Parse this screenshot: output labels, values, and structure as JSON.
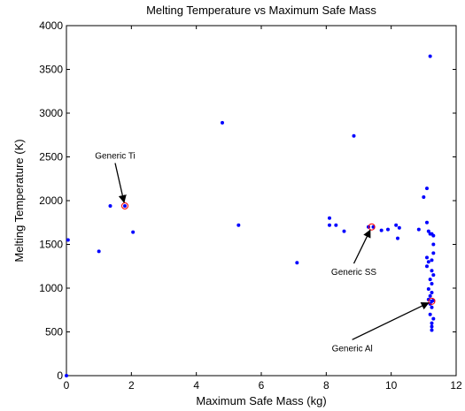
{
  "chart_data": {
    "type": "scatter",
    "title": "Melting Temperature vs Maximum Safe Mass",
    "xlabel": "Maximum Safe Mass (kg)",
    "ylabel": "Melting Temperature (K)",
    "xlim": [
      0,
      12
    ],
    "ylim": [
      0,
      4000
    ],
    "xticks": [
      0,
      2,
      4,
      6,
      8,
      10,
      12
    ],
    "yticks": [
      0,
      500,
      1000,
      1500,
      2000,
      2500,
      3000,
      3500,
      4000
    ],
    "grid": false,
    "colors": {
      "points": "#0000ff",
      "highlight": "#ff0000",
      "axes": "#000000"
    },
    "series": [
      {
        "points": [
          {
            "x": 0.0,
            "y": 0
          },
          {
            "x": 0.05,
            "y": 1550
          },
          {
            "x": 1.0,
            "y": 1420
          },
          {
            "x": 1.35,
            "y": 1940
          },
          {
            "x": 1.8,
            "y": 1940
          },
          {
            "x": 2.05,
            "y": 1640
          },
          {
            "x": 4.8,
            "y": 2890
          },
          {
            "x": 5.3,
            "y": 1720
          },
          {
            "x": 7.1,
            "y": 1290
          },
          {
            "x": 8.1,
            "y": 1800
          },
          {
            "x": 8.1,
            "y": 1720
          },
          {
            "x": 8.3,
            "y": 1720
          },
          {
            "x": 8.55,
            "y": 1650
          },
          {
            "x": 8.85,
            "y": 2740
          },
          {
            "x": 9.3,
            "y": 1700
          },
          {
            "x": 9.45,
            "y": 1700
          },
          {
            "x": 9.7,
            "y": 1660
          },
          {
            "x": 9.9,
            "y": 1670
          },
          {
            "x": 10.15,
            "y": 1720
          },
          {
            "x": 10.25,
            "y": 1690
          },
          {
            "x": 10.2,
            "y": 1570
          },
          {
            "x": 10.85,
            "y": 1670
          },
          {
            "x": 11.0,
            "y": 2040
          },
          {
            "x": 11.1,
            "y": 2140
          },
          {
            "x": 11.1,
            "y": 1750
          },
          {
            "x": 11.15,
            "y": 1650
          },
          {
            "x": 11.2,
            "y": 1620
          },
          {
            "x": 11.25,
            "y": 1620
          },
          {
            "x": 11.3,
            "y": 1600
          },
          {
            "x": 11.2,
            "y": 3650
          },
          {
            "x": 11.3,
            "y": 1500
          },
          {
            "x": 11.3,
            "y": 1400
          },
          {
            "x": 11.1,
            "y": 1350
          },
          {
            "x": 11.15,
            "y": 1300
          },
          {
            "x": 11.25,
            "y": 1320
          },
          {
            "x": 11.1,
            "y": 1250
          },
          {
            "x": 11.25,
            "y": 1200
          },
          {
            "x": 11.3,
            "y": 1150
          },
          {
            "x": 11.2,
            "y": 1100
          },
          {
            "x": 11.25,
            "y": 1050
          },
          {
            "x": 11.15,
            "y": 990
          },
          {
            "x": 11.25,
            "y": 950
          },
          {
            "x": 11.2,
            "y": 910
          },
          {
            "x": 11.15,
            "y": 870
          },
          {
            "x": 11.3,
            "y": 860
          },
          {
            "x": 11.2,
            "y": 820
          },
          {
            "x": 11.25,
            "y": 780
          },
          {
            "x": 11.2,
            "y": 700
          },
          {
            "x": 11.3,
            "y": 650
          },
          {
            "x": 11.25,
            "y": 600
          },
          {
            "x": 11.25,
            "y": 560
          },
          {
            "x": 11.25,
            "y": 520
          },
          {
            "x": 11.25,
            "y": 850
          }
        ]
      }
    ],
    "annotations": [
      {
        "text": "Generic Ti",
        "x": 1.8,
        "y": 1940,
        "label_x": 1.5,
        "label_y": 2480
      },
      {
        "text": "Generic SS",
        "x": 9.4,
        "y": 1700,
        "label_x": 8.85,
        "label_y": 1150
      },
      {
        "text": "Generic Al",
        "x": 11.25,
        "y": 850,
        "label_x": 8.8,
        "label_y": 280
      }
    ]
  }
}
